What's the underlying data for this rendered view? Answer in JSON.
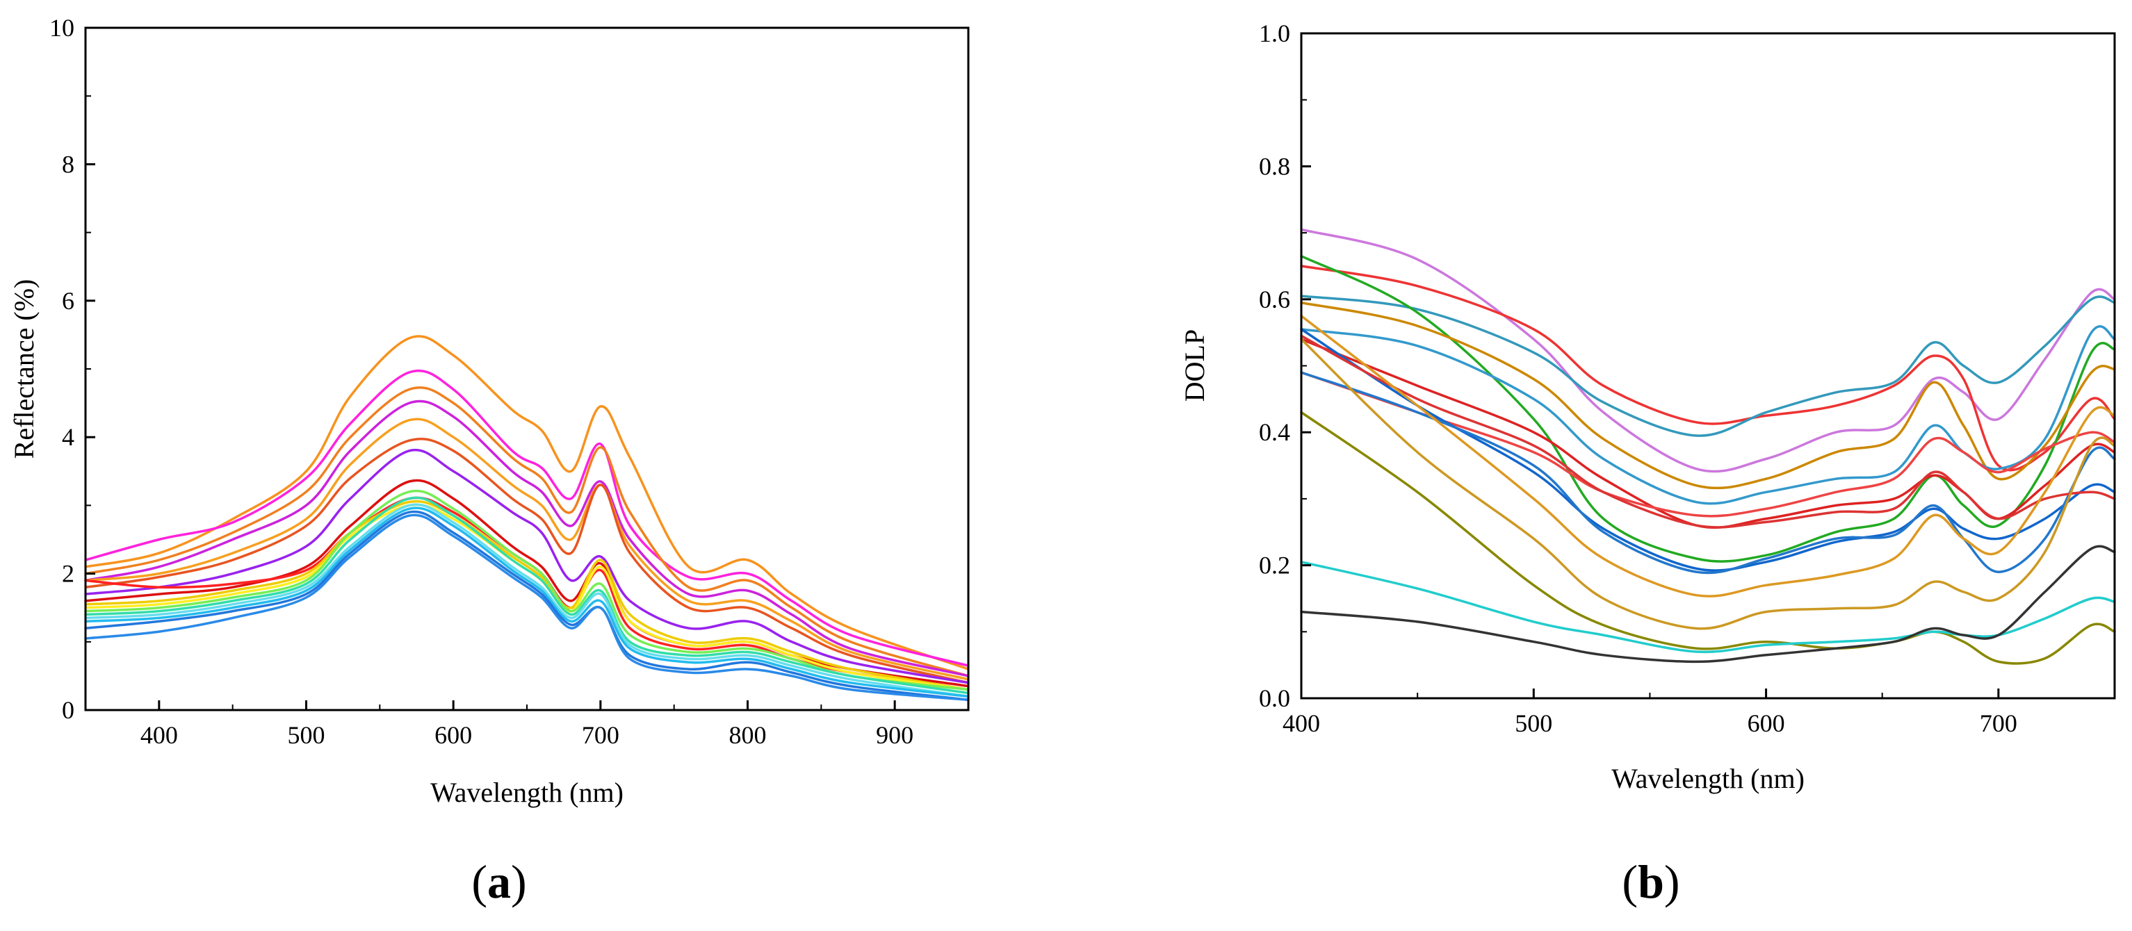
{
  "panels": [
    {
      "label_open": "(",
      "label_letter": "a",
      "label_close": ")"
    },
    {
      "label_open": "(",
      "label_letter": "b",
      "label_close": ")"
    }
  ],
  "chart_data": [
    {
      "type": "line",
      "xlabel": "Wavelength (nm)",
      "ylabel": "Reflectance (%)",
      "xlim": [
        350,
        950
      ],
      "ylim": [
        0,
        10
      ],
      "xticks": [
        400,
        500,
        600,
        700,
        800,
        900
      ],
      "yticks": [
        0,
        2,
        4,
        6,
        8,
        10
      ],
      "grid": false,
      "x": [
        350,
        400,
        450,
        500,
        530,
        570,
        600,
        640,
        660,
        680,
        700,
        720,
        760,
        800,
        830,
        870,
        950
      ],
      "series": [
        {
          "color": "#f7931e",
          "values": [
            2.1,
            2.3,
            2.8,
            3.5,
            4.6,
            5.45,
            5.2,
            4.4,
            4.1,
            3.5,
            4.45,
            3.7,
            2.1,
            2.2,
            1.7,
            1.2,
            0.6
          ]
        },
        {
          "color": "#ff22dd",
          "values": [
            2.2,
            2.5,
            2.75,
            3.4,
            4.2,
            4.95,
            4.7,
            3.8,
            3.55,
            3.1,
            3.9,
            2.7,
            1.95,
            2.0,
            1.6,
            1.1,
            0.65
          ]
        },
        {
          "color": "#f08020",
          "values": [
            2.0,
            2.2,
            2.6,
            3.2,
            4.0,
            4.7,
            4.5,
            3.7,
            3.4,
            2.9,
            3.85,
            2.9,
            1.8,
            1.9,
            1.5,
            1.0,
            0.5
          ]
        },
        {
          "color": "#cc22dd",
          "values": [
            1.9,
            2.1,
            2.5,
            3.0,
            3.8,
            4.5,
            4.3,
            3.5,
            3.2,
            2.7,
            3.35,
            2.5,
            1.7,
            1.75,
            1.4,
            0.9,
            0.5
          ]
        },
        {
          "color": "#f7a020",
          "values": [
            1.9,
            2.0,
            2.3,
            2.8,
            3.6,
            4.25,
            4.0,
            3.3,
            3.0,
            2.5,
            3.3,
            2.4,
            1.6,
            1.6,
            1.3,
            0.85,
            0.45
          ]
        },
        {
          "color": "#e85520",
          "values": [
            1.8,
            1.95,
            2.2,
            2.7,
            3.4,
            3.95,
            3.8,
            3.1,
            2.8,
            2.3,
            3.3,
            2.3,
            1.5,
            1.5,
            1.2,
            0.8,
            0.4
          ]
        },
        {
          "color": "#9922ee",
          "values": [
            1.7,
            1.8,
            2.0,
            2.4,
            3.1,
            3.8,
            3.5,
            2.9,
            2.6,
            1.9,
            2.25,
            1.6,
            1.2,
            1.3,
            1.0,
            0.7,
            0.4
          ]
        },
        {
          "color": "#dd1010",
          "values": [
            1.6,
            1.7,
            1.8,
            2.1,
            2.7,
            3.35,
            3.1,
            2.4,
            2.1,
            1.6,
            2.15,
            1.3,
            0.95,
            1.0,
            0.8,
            0.6,
            0.35
          ]
        },
        {
          "color": "#ff2222",
          "values": [
            1.9,
            1.8,
            1.85,
            2.05,
            2.6,
            3.1,
            2.9,
            2.3,
            2.0,
            1.5,
            2.05,
            1.2,
            0.9,
            0.95,
            0.75,
            0.55,
            0.3
          ]
        },
        {
          "color": "#eecc00",
          "values": [
            1.55,
            1.6,
            1.75,
            2.0,
            2.6,
            3.05,
            2.85,
            2.25,
            1.95,
            1.5,
            2.2,
            1.4,
            1.0,
            1.05,
            0.85,
            0.6,
            0.3
          ]
        },
        {
          "color": "#ffee22",
          "values": [
            1.5,
            1.55,
            1.7,
            1.95,
            2.55,
            3.0,
            2.8,
            2.2,
            1.9,
            1.45,
            2.1,
            1.3,
            0.95,
            1.0,
            0.8,
            0.55,
            0.3
          ]
        },
        {
          "color": "#77ee55",
          "values": [
            1.45,
            1.5,
            1.65,
            1.9,
            2.6,
            3.2,
            2.95,
            2.3,
            2.0,
            1.45,
            1.85,
            1.1,
            0.85,
            0.9,
            0.75,
            0.5,
            0.3
          ]
        },
        {
          "color": "#33ddaa",
          "values": [
            1.4,
            1.45,
            1.6,
            1.85,
            2.5,
            3.1,
            2.85,
            2.2,
            1.9,
            1.4,
            1.75,
            1.0,
            0.8,
            0.85,
            0.7,
            0.5,
            0.25
          ]
        },
        {
          "color": "#66ddee",
          "values": [
            1.35,
            1.4,
            1.55,
            1.8,
            2.4,
            3.0,
            2.75,
            2.1,
            1.8,
            1.35,
            1.7,
            0.95,
            0.75,
            0.8,
            0.65,
            0.45,
            0.2
          ]
        },
        {
          "color": "#22bbee",
          "values": [
            1.3,
            1.35,
            1.5,
            1.75,
            2.35,
            2.95,
            2.7,
            2.05,
            1.75,
            1.3,
            1.6,
            0.9,
            0.7,
            0.75,
            0.6,
            0.4,
            0.2
          ]
        },
        {
          "color": "#2277dd",
          "values": [
            1.2,
            1.3,
            1.45,
            1.7,
            2.3,
            2.9,
            2.6,
            2.0,
            1.7,
            1.25,
            1.5,
            0.8,
            0.6,
            0.7,
            0.55,
            0.35,
            0.15
          ]
        },
        {
          "color": "#2a8ae8",
          "values": [
            1.05,
            1.15,
            1.35,
            1.65,
            2.25,
            2.85,
            2.55,
            1.95,
            1.65,
            1.2,
            1.5,
            0.75,
            0.55,
            0.6,
            0.5,
            0.3,
            0.15
          ]
        }
      ]
    },
    {
      "type": "line",
      "xlabel": "Wavelength (nm)",
      "ylabel": "DOLP",
      "xlim": [
        400,
        750
      ],
      "ylim": [
        0.0,
        1.0
      ],
      "xticks": [
        400,
        500,
        600,
        700
      ],
      "yticks": [
        "0.0",
        "0.2",
        "0.4",
        "0.6",
        "0.8",
        "1.0"
      ],
      "grid": false,
      "x": [
        400,
        450,
        500,
        530,
        570,
        600,
        630,
        655,
        672,
        685,
        700,
        720,
        740,
        750
      ],
      "series": [
        {
          "color": "#cc77dd",
          "values": [
            0.705,
            0.66,
            0.54,
            0.43,
            0.345,
            0.36,
            0.4,
            0.41,
            0.48,
            0.46,
            0.42,
            0.51,
            0.61,
            0.6
          ]
        },
        {
          "color": "#ee3333",
          "values": [
            0.65,
            0.62,
            0.555,
            0.47,
            0.415,
            0.425,
            0.44,
            0.47,
            0.515,
            0.48,
            0.35,
            0.37,
            0.45,
            0.42
          ]
        },
        {
          "color": "#3399bb",
          "values": [
            0.605,
            0.585,
            0.52,
            0.445,
            0.395,
            0.43,
            0.46,
            0.475,
            0.535,
            0.5,
            0.475,
            0.53,
            0.6,
            0.595
          ]
        },
        {
          "color": "#22aa22",
          "values": [
            0.665,
            0.58,
            0.42,
            0.27,
            0.21,
            0.215,
            0.25,
            0.27,
            0.335,
            0.29,
            0.26,
            0.35,
            0.52,
            0.525
          ]
        },
        {
          "color": "#cc8800",
          "values": [
            0.595,
            0.56,
            0.48,
            0.39,
            0.32,
            0.33,
            0.37,
            0.39,
            0.475,
            0.41,
            0.33,
            0.38,
            0.49,
            0.495
          ]
        },
        {
          "color": "#3399cc",
          "values": [
            0.555,
            0.53,
            0.45,
            0.36,
            0.295,
            0.31,
            0.33,
            0.34,
            0.41,
            0.37,
            0.345,
            0.39,
            0.55,
            0.54
          ]
        },
        {
          "color": "#dd2222",
          "values": [
            0.54,
            0.47,
            0.4,
            0.33,
            0.26,
            0.27,
            0.29,
            0.3,
            0.335,
            0.31,
            0.27,
            0.32,
            0.38,
            0.37
          ]
        },
        {
          "color": "#ee4444",
          "values": [
            0.49,
            0.43,
            0.37,
            0.31,
            0.275,
            0.285,
            0.31,
            0.33,
            0.39,
            0.37,
            0.34,
            0.375,
            0.4,
            0.385
          ]
        },
        {
          "color": "#1166cc",
          "values": [
            0.555,
            0.44,
            0.34,
            0.255,
            0.195,
            0.205,
            0.235,
            0.25,
            0.285,
            0.255,
            0.24,
            0.27,
            0.32,
            0.31
          ]
        },
        {
          "color": "#2277cc",
          "values": [
            0.49,
            0.43,
            0.35,
            0.25,
            0.19,
            0.21,
            0.24,
            0.245,
            0.29,
            0.24,
            0.19,
            0.24,
            0.37,
            0.36
          ]
        },
        {
          "color": "#dd3333",
          "values": [
            0.545,
            0.45,
            0.38,
            0.31,
            0.26,
            0.265,
            0.28,
            0.285,
            0.34,
            0.31,
            0.27,
            0.3,
            0.31,
            0.3
          ]
        },
        {
          "color": "#dd9922",
          "values": [
            0.575,
            0.44,
            0.3,
            0.21,
            0.155,
            0.17,
            0.185,
            0.21,
            0.275,
            0.24,
            0.22,
            0.31,
            0.43,
            0.425
          ]
        },
        {
          "color": "#cc9922",
          "values": [
            0.54,
            0.37,
            0.24,
            0.15,
            0.105,
            0.13,
            0.135,
            0.14,
            0.175,
            0.16,
            0.15,
            0.22,
            0.38,
            0.38
          ]
        },
        {
          "color": "#888800",
          "values": [
            0.43,
            0.31,
            0.17,
            0.11,
            0.075,
            0.085,
            0.075,
            0.085,
            0.1,
            0.085,
            0.055,
            0.06,
            0.11,
            0.1
          ]
        },
        {
          "color": "#22cccc",
          "values": [
            0.205,
            0.165,
            0.115,
            0.095,
            0.07,
            0.08,
            0.085,
            0.09,
            0.1,
            0.095,
            0.095,
            0.12,
            0.15,
            0.145
          ]
        },
        {
          "color": "#333333",
          "values": [
            0.13,
            0.115,
            0.085,
            0.065,
            0.055,
            0.065,
            0.075,
            0.085,
            0.105,
            0.095,
            0.095,
            0.16,
            0.225,
            0.22
          ]
        }
      ]
    }
  ]
}
